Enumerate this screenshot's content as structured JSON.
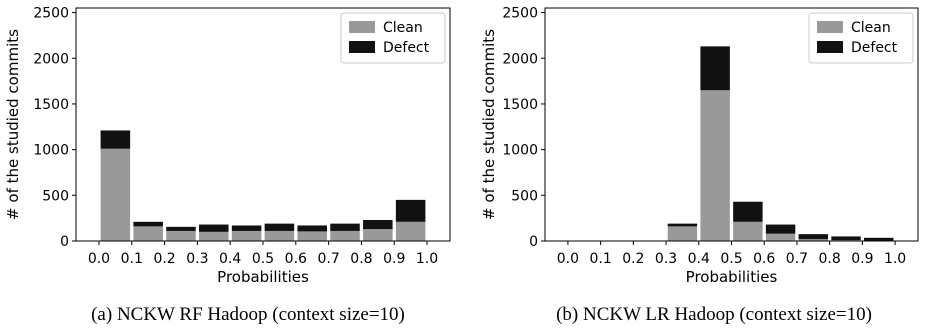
{
  "chart_data": [
    {
      "type": "bar",
      "stacked": true,
      "caption": "(a) NCKW RF Hadoop (context size=10)",
      "xlabel": "Probabilities",
      "ylabel": "# of the studied commits",
      "xticks": [
        "0.0",
        "0.1",
        "0.2",
        "0.3",
        "0.4",
        "0.5",
        "0.6",
        "0.7",
        "0.8",
        "0.9",
        "1.0"
      ],
      "yticks": [
        "0",
        "500",
        "1000",
        "1500",
        "2000",
        "2500"
      ],
      "ylim": [
        0,
        2550
      ],
      "xlim": [
        -0.07,
        1.07
      ],
      "bin_centers": [
        0.05,
        0.15,
        0.25,
        0.35,
        0.45,
        0.55,
        0.65,
        0.75,
        0.85,
        0.95
      ],
      "bar_width": 0.09,
      "legend_position": "top-right",
      "grid": false,
      "series": [
        {
          "name": "Clean",
          "color": "#999999",
          "values": [
            1010,
            160,
            110,
            100,
            110,
            110,
            105,
            110,
            130,
            210
          ]
        },
        {
          "name": "Defect",
          "color": "#111111",
          "values": [
            200,
            50,
            45,
            80,
            60,
            80,
            65,
            80,
            100,
            240
          ]
        }
      ]
    },
    {
      "type": "bar",
      "stacked": true,
      "caption": "(b) NCKW LR Hadoop (context size=10)",
      "xlabel": "Probabilities",
      "ylabel": "# of the studied commits",
      "xticks": [
        "0.0",
        "0.1",
        "0.2",
        "0.3",
        "0.4",
        "0.5",
        "0.6",
        "0.7",
        "0.8",
        "0.9",
        "1.0"
      ],
      "yticks": [
        "0",
        "500",
        "1000",
        "1500",
        "2000",
        "2500"
      ],
      "ylim": [
        0,
        2550
      ],
      "xlim": [
        -0.07,
        1.07
      ],
      "bin_centers": [
        0.05,
        0.15,
        0.25,
        0.35,
        0.45,
        0.55,
        0.65,
        0.75,
        0.85,
        0.95
      ],
      "bar_width": 0.09,
      "legend_position": "top-right",
      "grid": false,
      "series": [
        {
          "name": "Clean",
          "color": "#999999",
          "values": [
            0,
            0,
            0,
            160,
            1650,
            210,
            80,
            20,
            10,
            5
          ]
        },
        {
          "name": "Defect",
          "color": "#111111",
          "values": [
            0,
            0,
            0,
            30,
            480,
            220,
            100,
            55,
            40,
            30
          ]
        }
      ]
    }
  ]
}
